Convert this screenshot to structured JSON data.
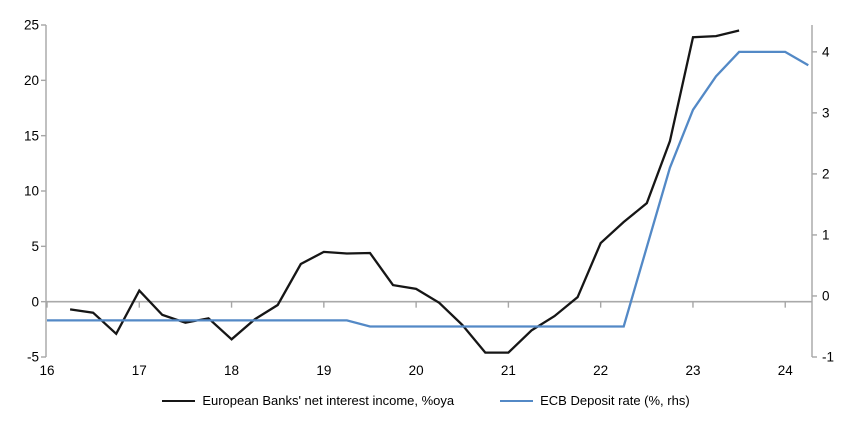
{
  "chart_data": {
    "type": "line",
    "title": "",
    "xlabel": "",
    "ylabel_left": "",
    "ylabel_right": "",
    "grid": "zero-line-only",
    "legend_position": "bottom-center",
    "x_axis": {
      "ticks": [
        16,
        17,
        18,
        19,
        20,
        21,
        22,
        23,
        24
      ],
      "range": [
        16,
        24.29
      ]
    },
    "left_axis": {
      "ticks": [
        25,
        20,
        15,
        10,
        5,
        0,
        -5
      ],
      "range": [
        -5,
        25
      ]
    },
    "right_axis": {
      "ticks": [
        4,
        3,
        2,
        1,
        0,
        -1
      ],
      "range": [
        -1,
        4.44
      ]
    },
    "series": [
      {
        "name": "European Banks' net interest income, %oya",
        "axis": "left",
        "color": "#161616",
        "x": [
          16.25,
          16.5,
          16.75,
          17,
          17.25,
          17.5,
          17.75,
          18,
          18.25,
          18.5,
          18.75,
          19,
          19.25,
          19.5,
          19.75,
          20,
          20.25,
          20.5,
          20.75,
          21,
          21.25,
          21.5,
          21.75,
          22,
          22.25,
          22.5,
          22.75,
          23,
          23.25,
          23.5
        ],
        "values": [
          -0.7,
          -1.0,
          -2.9,
          1.0,
          -1.2,
          -1.9,
          -1.5,
          -3.4,
          -1.6,
          -0.3,
          3.4,
          4.5,
          4.35,
          4.4,
          1.5,
          1.15,
          -0.1,
          -2.1,
          -4.6,
          -4.6,
          -2.6,
          -1.3,
          0.4,
          5.3,
          7.2,
          8.9,
          14.5,
          23.9,
          24.0,
          24.5
        ]
      },
      {
        "name": "ECB Deposit rate (%, rhs)",
        "axis": "right",
        "color": "#5389C6",
        "x": [
          16,
          16.25,
          16.5,
          16.75,
          17,
          17.25,
          17.5,
          17.75,
          18,
          18.25,
          18.5,
          18.75,
          19,
          19.25,
          19.5,
          19.75,
          20,
          20.25,
          20.5,
          20.75,
          21,
          21.25,
          21.5,
          21.75,
          22,
          22.25,
          22.5,
          22.75,
          23,
          23.25,
          23.5,
          23.75,
          24,
          24.25
        ],
        "values": [
          -0.4,
          -0.4,
          -0.4,
          -0.4,
          -0.4,
          -0.4,
          -0.4,
          -0.4,
          -0.4,
          -0.4,
          -0.4,
          -0.4,
          -0.4,
          -0.4,
          -0.5,
          -0.5,
          -0.5,
          -0.5,
          -0.5,
          -0.5,
          -0.5,
          -0.5,
          -0.5,
          -0.5,
          -0.5,
          -0.5,
          0.8,
          2.1,
          3.05,
          3.6,
          4.0,
          4.0,
          4.0,
          3.78
        ]
      }
    ],
    "colors": {
      "axis_line": "#a6a6a6",
      "zero_line": "#a9a9a9",
      "tick_label": "#000000"
    }
  }
}
